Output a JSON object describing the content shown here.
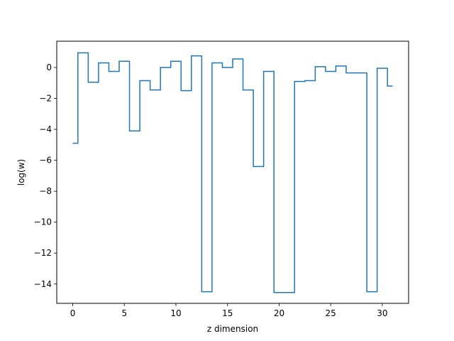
{
  "chart_data": {
    "type": "line",
    "drawstyle": "steps-mid",
    "title": "",
    "xlabel": "z dimension",
    "ylabel": "log(w)",
    "xlim": [
      -1.55,
      32.55
    ],
    "ylim": [
      -15.25,
      1.7
    ],
    "grid": false,
    "x_ticks": [
      0,
      5,
      10,
      15,
      20,
      25,
      30
    ],
    "x_tick_labels": [
      "0",
      "5",
      "10",
      "15",
      "20",
      "25",
      "30"
    ],
    "y_ticks": [
      -14,
      -12,
      -10,
      -8,
      -6,
      -4,
      -2,
      0
    ],
    "y_tick_labels": [
      "−14",
      "−12",
      "−10",
      "−8",
      "−6",
      "−4",
      "−2",
      "0"
    ],
    "series": [
      {
        "color": "#1f77b4",
        "x": [
          0,
          1,
          2,
          3,
          4,
          5,
          6,
          7,
          8,
          9,
          10,
          11,
          12,
          13,
          14,
          15,
          16,
          17,
          18,
          19,
          20,
          21,
          22,
          23,
          24,
          25,
          26,
          27,
          28,
          29,
          30,
          31
        ],
        "values": [
          -4.9,
          0.95,
          -0.95,
          0.3,
          -0.25,
          0.4,
          -4.1,
          -0.85,
          -1.45,
          0.0,
          0.4,
          -1.5,
          0.75,
          -14.5,
          0.3,
          0.0,
          0.55,
          -1.45,
          -6.4,
          -0.25,
          -14.55,
          -14.55,
          -0.9,
          -0.85,
          0.05,
          -0.25,
          0.1,
          -0.35,
          -0.35,
          -14.5,
          -0.05,
          -1.2
        ]
      }
    ]
  }
}
